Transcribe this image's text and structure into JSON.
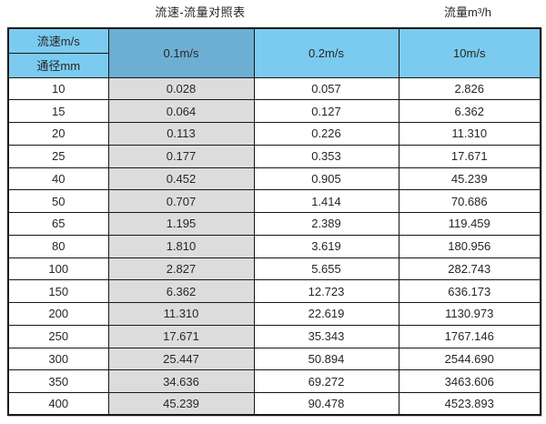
{
  "page": {
    "title": "流速-流量对照表",
    "unit_label": "流量m³/h"
  },
  "table": {
    "header": {
      "velocity_label": "流速m/s",
      "diameter_label": "通径mm",
      "columns": [
        "0.1m/s",
        "0.2m/s",
        "10m/s"
      ]
    },
    "rows": [
      {
        "diameter": "10",
        "values": [
          "0.028",
          "0.057",
          "2.826"
        ]
      },
      {
        "diameter": "15",
        "values": [
          "0.064",
          "0.127",
          "6.362"
        ]
      },
      {
        "diameter": "20",
        "values": [
          "0.113",
          "0.226",
          "11.310"
        ]
      },
      {
        "diameter": "25",
        "values": [
          "0.177",
          "0.353",
          "17.671"
        ]
      },
      {
        "diameter": "40",
        "values": [
          "0.452",
          "0.905",
          "45.239"
        ]
      },
      {
        "diameter": "50",
        "values": [
          "0.707",
          "1.414",
          "70.686"
        ]
      },
      {
        "diameter": "65",
        "values": [
          "1.195",
          "2.389",
          "119.459"
        ]
      },
      {
        "diameter": "80",
        "values": [
          "1.810",
          "3.619",
          "180.956"
        ]
      },
      {
        "diameter": "100",
        "values": [
          "2.827",
          "5.655",
          "282.743"
        ]
      },
      {
        "diameter": "150",
        "values": [
          "6.362",
          "12.723",
          "636.173"
        ]
      },
      {
        "diameter": "200",
        "values": [
          "11.310",
          "22.619",
          "1130.973"
        ]
      },
      {
        "diameter": "250",
        "values": [
          "17.671",
          "35.343",
          "1767.146"
        ]
      },
      {
        "diameter": "300",
        "values": [
          "25.447",
          "50.894",
          "2544.690"
        ]
      },
      {
        "diameter": "350",
        "values": [
          "34.636",
          "69.272",
          "3463.606"
        ]
      },
      {
        "diameter": "400",
        "values": [
          "45.239",
          "90.478",
          "4523.893"
        ]
      }
    ]
  },
  "colors": {
    "header_blue": "#7bcbf0",
    "header_blue_dark": "#6cafd3",
    "column_gray": "#dcdcdc",
    "border": "#161616",
    "text": "#262626"
  },
  "chart_data": {
    "type": "table",
    "title": "流速-流量对照表",
    "value_unit": "流量m³/h",
    "row_axis_label": "通径mm",
    "column_axis_label": "流速m/s",
    "categories": [
      10,
      15,
      20,
      25,
      40,
      50,
      65,
      80,
      100,
      150,
      200,
      250,
      300,
      350,
      400
    ],
    "series": [
      {
        "name": "0.1m/s",
        "values": [
          0.028,
          0.064,
          0.113,
          0.177,
          0.452,
          0.707,
          1.195,
          1.81,
          2.827,
          6.362,
          11.31,
          17.671,
          25.447,
          34.636,
          45.239
        ]
      },
      {
        "name": "0.2m/s",
        "values": [
          0.057,
          0.127,
          0.226,
          0.353,
          0.905,
          1.414,
          2.389,
          3.619,
          5.655,
          12.723,
          22.619,
          35.343,
          50.894,
          69.272,
          90.478
        ]
      },
      {
        "name": "10m/s",
        "values": [
          2.826,
          6.362,
          11.31,
          17.671,
          45.239,
          70.686,
          119.459,
          180.956,
          282.743,
          636.173,
          1130.973,
          1767.146,
          2544.69,
          3463.606,
          4523.893
        ]
      }
    ],
    "layout_hints": {
      "highlighted_column": "0.1m/s",
      "grid": true
    }
  }
}
